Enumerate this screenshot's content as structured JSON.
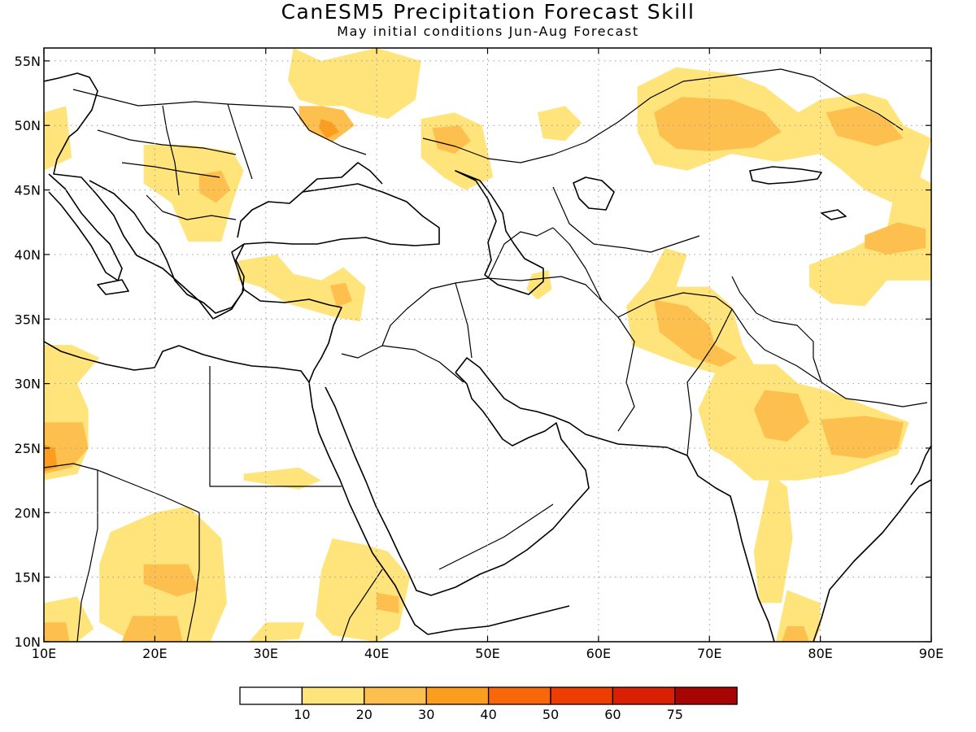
{
  "header": {
    "title": "CanESM5 Precipitation Forecast Skill",
    "subtitle": "May initial conditions   Jun-Aug Forecast"
  },
  "map": {
    "lon_range": [
      10,
      90
    ],
    "lat_range": [
      10,
      56
    ],
    "lon_ticks": [
      {
        "value": 10,
        "label": "10E"
      },
      {
        "value": 20,
        "label": "20E"
      },
      {
        "value": 30,
        "label": "30E"
      },
      {
        "value": 40,
        "label": "40E"
      },
      {
        "value": 50,
        "label": "50E"
      },
      {
        "value": 60,
        "label": "60E"
      },
      {
        "value": 70,
        "label": "70E"
      },
      {
        "value": 80,
        "label": "80E"
      },
      {
        "value": 90,
        "label": "90E"
      }
    ],
    "lat_ticks": [
      {
        "value": 10,
        "label": "10N"
      },
      {
        "value": 15,
        "label": "15N"
      },
      {
        "value": 20,
        "label": "20N"
      },
      {
        "value": 25,
        "label": "25N"
      },
      {
        "value": 30,
        "label": "30N"
      },
      {
        "value": 35,
        "label": "35N"
      },
      {
        "value": 40,
        "label": "40N"
      },
      {
        "value": 45,
        "label": "45N"
      },
      {
        "value": 50,
        "label": "50N"
      },
      {
        "value": 55,
        "label": "55N"
      }
    ],
    "grid": "dotted"
  },
  "legend": {
    "bins": [
      {
        "color": "#ffffff"
      },
      {
        "color": "#fee47a"
      },
      {
        "color": "#fdc04e"
      },
      {
        "color": "#fb9e20"
      },
      {
        "color": "#f8680a"
      },
      {
        "color": "#ee3d02"
      },
      {
        "color": "#d92004"
      },
      {
        "color": "#a70404"
      }
    ],
    "labels": [
      "10",
      "20",
      "30",
      "40",
      "50",
      "60",
      "75"
    ]
  },
  "skill_regions": [
    {
      "level": 1,
      "pts": [
        [
          32.5,
          56
        ],
        [
          35,
          55
        ],
        [
          40,
          56
        ],
        [
          44,
          55
        ],
        [
          43.5,
          52
        ],
        [
          41,
          50.5
        ],
        [
          38.5,
          51
        ],
        [
          37,
          51.5
        ],
        [
          35,
          51.5
        ],
        [
          33,
          52
        ],
        [
          32,
          53.5
        ]
      ]
    },
    {
      "level": 2,
      "pts": [
        [
          33,
          51.5
        ],
        [
          35,
          51.5
        ],
        [
          37,
          51.2
        ],
        [
          38,
          50
        ],
        [
          36,
          48.7
        ],
        [
          34,
          49.5
        ],
        [
          33,
          50.5
        ]
      ]
    },
    {
      "level": 3,
      "pts": [
        [
          35,
          50.5
        ],
        [
          36,
          50.2
        ],
        [
          36.6,
          49.5
        ],
        [
          35.5,
          49
        ],
        [
          34.8,
          49.8
        ]
      ]
    },
    {
      "level": 1,
      "pts": [
        [
          44,
          50.5
        ],
        [
          47,
          51
        ],
        [
          49.5,
          50
        ],
        [
          50.5,
          46
        ],
        [
          48,
          45
        ],
        [
          46,
          46
        ],
        [
          44,
          47.5
        ]
      ]
    },
    {
      "level": 2,
      "pts": [
        [
          45,
          49.8
        ],
        [
          47.5,
          50
        ],
        [
          48.5,
          48.8
        ],
        [
          47,
          47.8
        ],
        [
          45.5,
          48.2
        ]
      ]
    },
    {
      "level": 1,
      "pts": [
        [
          10,
          51
        ],
        [
          12,
          51.5
        ],
        [
          12.5,
          47.5
        ],
        [
          10,
          46.5
        ]
      ]
    },
    {
      "level": 1,
      "pts": [
        [
          19,
          48.5
        ],
        [
          23,
          48.5
        ],
        [
          27,
          48
        ],
        [
          28,
          46.5
        ],
        [
          27,
          44
        ],
        [
          26,
          41
        ],
        [
          23,
          41
        ],
        [
          21.5,
          44
        ],
        [
          19,
          45.5
        ]
      ]
    },
    {
      "level": 2,
      "pts": [
        [
          24,
          46.2
        ],
        [
          26,
          46.5
        ],
        [
          26.8,
          45
        ],
        [
          25.5,
          44
        ],
        [
          24,
          44.8
        ]
      ]
    },
    {
      "level": 1,
      "pts": [
        [
          27.5,
          39.5
        ],
        [
          31,
          40
        ],
        [
          32.5,
          38.5
        ],
        [
          35,
          38
        ],
        [
          37,
          39
        ],
        [
          39,
          37.5
        ],
        [
          38.5,
          34.8
        ],
        [
          36,
          35.2
        ],
        [
          32,
          36.2
        ],
        [
          29.5,
          37.5
        ],
        [
          27.5,
          38
        ]
      ]
    },
    {
      "level": 2,
      "pts": [
        [
          35.8,
          37.6
        ],
        [
          37.2,
          37.8
        ],
        [
          37.8,
          36.4
        ],
        [
          36.4,
          35.9
        ]
      ]
    },
    {
      "level": 1,
      "pts": [
        [
          10,
          33
        ],
        [
          12.5,
          33
        ],
        [
          15,
          32
        ],
        [
          13,
          30
        ],
        [
          14,
          28
        ],
        [
          14,
          25
        ],
        [
          13,
          23
        ],
        [
          10,
          22.5
        ]
      ]
    },
    {
      "level": 2,
      "pts": [
        [
          10,
          27
        ],
        [
          13.5,
          27
        ],
        [
          14,
          25
        ],
        [
          12.5,
          23.5
        ],
        [
          10,
          23
        ]
      ]
    },
    {
      "level": 3,
      "pts": [
        [
          10,
          25.3
        ],
        [
          11,
          25
        ],
        [
          11.2,
          23.5
        ],
        [
          10,
          23.2
        ]
      ]
    },
    {
      "level": 1,
      "pts": [
        [
          16,
          18.5
        ],
        [
          20,
          20
        ],
        [
          23,
          20.5
        ],
        [
          26,
          18
        ],
        [
          26.5,
          13
        ],
        [
          25,
          10
        ],
        [
          18,
          10
        ],
        [
          15,
          11.5
        ],
        [
          15,
          16
        ]
      ]
    },
    {
      "level": 2,
      "pts": [
        [
          19,
          16
        ],
        [
          23,
          16
        ],
        [
          24,
          14
        ],
        [
          22,
          13.5
        ],
        [
          19,
          14.5
        ]
      ]
    },
    {
      "level": 2,
      "pts": [
        [
          18,
          12
        ],
        [
          22,
          12
        ],
        [
          22.5,
          10
        ],
        [
          17,
          10
        ]
      ]
    },
    {
      "level": 1,
      "pts": [
        [
          10,
          13
        ],
        [
          13,
          13.5
        ],
        [
          14.5,
          11
        ],
        [
          13,
          10
        ],
        [
          10,
          10
        ]
      ]
    },
    {
      "level": 2,
      "pts": [
        [
          10,
          11.5
        ],
        [
          12,
          11.5
        ],
        [
          12.3,
          10
        ],
        [
          10,
          10
        ]
      ]
    },
    {
      "level": 1,
      "pts": [
        [
          36,
          18
        ],
        [
          39,
          17.5
        ],
        [
          41,
          17
        ],
        [
          43,
          15
        ],
        [
          42,
          11
        ],
        [
          40,
          10
        ],
        [
          36,
          10.5
        ],
        [
          34.5,
          12
        ],
        [
          35,
          15.5
        ]
      ]
    },
    {
      "level": 2,
      "pts": [
        [
          40,
          13.8
        ],
        [
          42,
          13.5
        ],
        [
          42,
          12.2
        ],
        [
          40,
          12.5
        ]
      ]
    },
    {
      "level": 1,
      "pts": [
        [
          28.5,
          10
        ],
        [
          33,
          10.2
        ],
        [
          33.5,
          11.5
        ],
        [
          30,
          11.5
        ]
      ]
    },
    {
      "level": 1,
      "pts": [
        [
          28,
          23
        ],
        [
          33,
          23.5
        ],
        [
          35,
          22.5
        ],
        [
          33,
          21.8
        ],
        [
          28,
          22.5
        ]
      ]
    },
    {
      "level": 1,
      "pts": [
        [
          64.5,
          38
        ],
        [
          66,
          40.5
        ],
        [
          68,
          40
        ],
        [
          67,
          37.5
        ],
        [
          70,
          37.5
        ],
        [
          72,
          36
        ],
        [
          73,
          33
        ],
        [
          74,
          31.5
        ],
        [
          76,
          31.5
        ],
        [
          78,
          30
        ],
        [
          80.5,
          29.5
        ],
        [
          85,
          28
        ],
        [
          88,
          27
        ],
        [
          87,
          24.5
        ],
        [
          82,
          23
        ],
        [
          78,
          22.5
        ],
        [
          74,
          22.5
        ],
        [
          72,
          24
        ],
        [
          70,
          25
        ],
        [
          69,
          28
        ],
        [
          70.5,
          30.8
        ],
        [
          67.5,
          31.5
        ],
        [
          66,
          32
        ],
        [
          63,
          33
        ],
        [
          62.5,
          36
        ]
      ]
    },
    {
      "level": 2,
      "pts": [
        [
          65,
          36.5
        ],
        [
          68,
          36
        ],
        [
          70,
          34.5
        ],
        [
          70.5,
          33
        ],
        [
          72.5,
          32
        ],
        [
          71,
          31.3
        ],
        [
          68.5,
          32
        ],
        [
          67,
          33
        ],
        [
          65.5,
          34
        ]
      ]
    },
    {
      "level": 2,
      "pts": [
        [
          75,
          29.5
        ],
        [
          78,
          29.2
        ],
        [
          79,
          27
        ],
        [
          77,
          25.5
        ],
        [
          75,
          25.8
        ],
        [
          74,
          28
        ]
      ]
    },
    {
      "level": 2,
      "pts": [
        [
          80,
          27.2
        ],
        [
          84,
          27.5
        ],
        [
          87.5,
          27
        ],
        [
          87,
          25
        ],
        [
          84,
          24.2
        ],
        [
          81,
          24.5
        ]
      ]
    },
    {
      "level": 1,
      "pts": [
        [
          75.5,
          23
        ],
        [
          77,
          22
        ],
        [
          77.5,
          18
        ],
        [
          76.5,
          13
        ],
        [
          74.5,
          13
        ],
        [
          74,
          17
        ],
        [
          75,
          21
        ]
      ]
    },
    {
      "level": 1,
      "pts": [
        [
          77,
          14
        ],
        [
          80,
          13
        ],
        [
          80,
          11
        ],
        [
          79.5,
          10
        ],
        [
          76,
          10
        ],
        [
          76.5,
          12
        ]
      ]
    },
    {
      "level": 2,
      "pts": [
        [
          77,
          11.2
        ],
        [
          78.5,
          11.2
        ],
        [
          79,
          10
        ],
        [
          76.5,
          10
        ]
      ]
    },
    {
      "level": 1,
      "pts": [
        [
          63.5,
          53
        ],
        [
          67,
          54.5
        ],
        [
          72,
          54
        ],
        [
          75,
          53
        ],
        [
          78,
          51
        ],
        [
          80,
          52
        ],
        [
          84,
          52.5
        ],
        [
          86,
          52
        ],
        [
          87.5,
          50
        ],
        [
          90,
          49
        ],
        [
          89,
          46
        ],
        [
          90,
          45.5
        ],
        [
          90,
          38
        ],
        [
          86,
          38
        ],
        [
          84,
          36
        ],
        [
          81,
          36.2
        ],
        [
          79,
          37.5
        ],
        [
          79,
          39.2
        ],
        [
          83,
          40.5
        ],
        [
          86,
          42
        ],
        [
          86.5,
          44
        ],
        [
          84,
          45
        ],
        [
          82,
          46.5
        ],
        [
          80,
          47.8
        ],
        [
          76,
          47.2
        ],
        [
          72,
          47.8
        ],
        [
          68,
          46.5
        ],
        [
          65,
          47
        ],
        [
          63.5,
          49.5
        ]
      ]
    },
    {
      "level": 2,
      "pts": [
        [
          65,
          51
        ],
        [
          67.5,
          52.2
        ],
        [
          72,
          52
        ],
        [
          75,
          51
        ],
        [
          76.5,
          49.5
        ],
        [
          74,
          48.3
        ],
        [
          70,
          48
        ],
        [
          67,
          48.2
        ],
        [
          65.5,
          49.2
        ]
      ]
    },
    {
      "level": 2,
      "pts": [
        [
          80.5,
          51
        ],
        [
          83.5,
          51.5
        ],
        [
          86,
          50.5
        ],
        [
          87.5,
          49
        ],
        [
          85,
          48.4
        ],
        [
          81.5,
          49.2
        ]
      ]
    },
    {
      "level": 2,
      "pts": [
        [
          84,
          41.5
        ],
        [
          87,
          42.5
        ],
        [
          89.5,
          42
        ],
        [
          89.5,
          40.5
        ],
        [
          86,
          40
        ],
        [
          84,
          40.5
        ]
      ]
    },
    {
      "level": 1,
      "pts": [
        [
          54.5,
          51
        ],
        [
          57,
          51.5
        ],
        [
          58.5,
          50.2
        ],
        [
          57,
          48.8
        ],
        [
          55,
          49
        ]
      ]
    },
    {
      "level": 1,
      "pts": [
        [
          54,
          38.5
        ],
        [
          55.5,
          38.8
        ],
        [
          55.8,
          37.3
        ],
        [
          54.5,
          36.5
        ],
        [
          53.5,
          37.3
        ]
      ]
    }
  ]
}
